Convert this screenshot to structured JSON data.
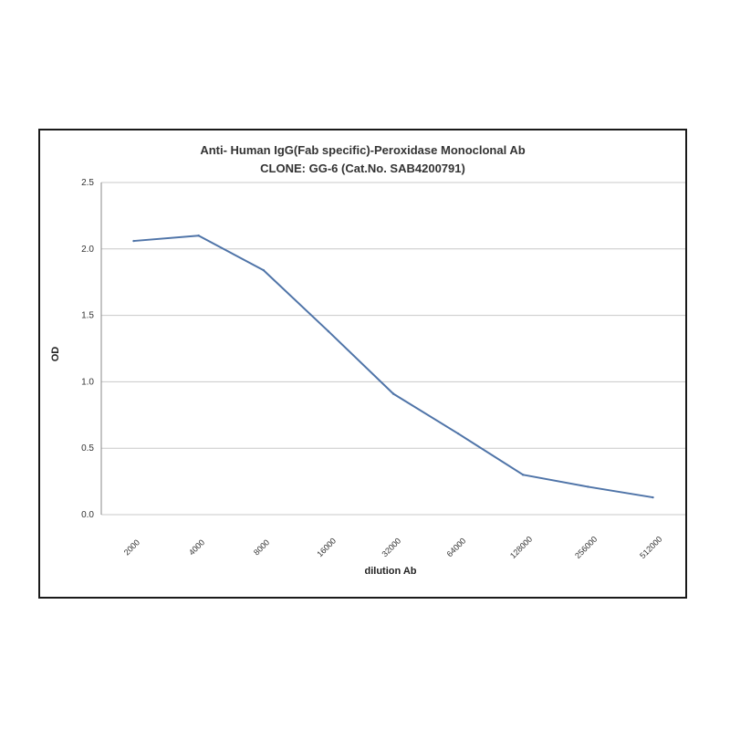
{
  "chart_data": {
    "type": "line",
    "title": "Anti- Human IgG(Fab specific)-Peroxidase Monoclonal Ab",
    "subtitle": "CLONE: GG-6 (Cat.No. SAB4200791)",
    "xlabel": "dilution Ab",
    "ylabel": "OD",
    "categories": [
      "2000",
      "4000",
      "8000",
      "16000",
      "32000",
      "64000",
      "128000",
      "256000",
      "512000"
    ],
    "series": [
      {
        "values": [
          2.06,
          2.1,
          1.84,
          1.38,
          0.91,
          0.61,
          0.3,
          0.21,
          0.13
        ]
      }
    ],
    "yticks": [
      "0.0",
      "0.5",
      "1.0",
      "1.5",
      "2.0",
      "2.5"
    ],
    "ylim": [
      0,
      2.5
    ],
    "grid": true,
    "legend": "none",
    "colors": {
      "line": "#4f74a8",
      "grid": "#c8c8c8",
      "axis": "#888888"
    }
  }
}
